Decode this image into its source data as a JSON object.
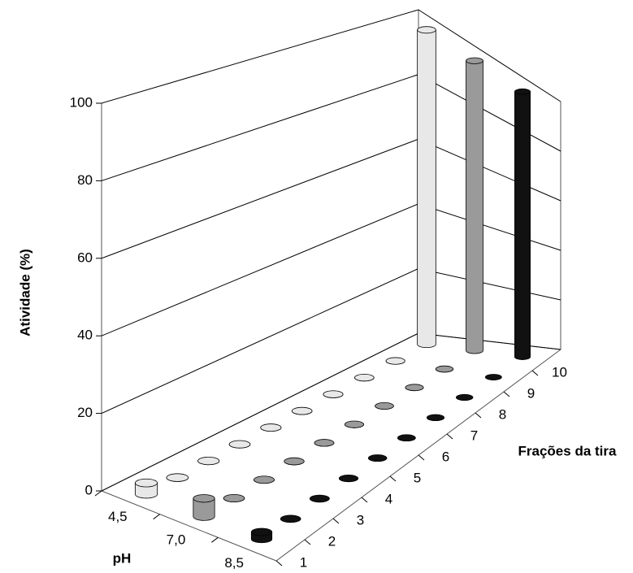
{
  "chart_data": {
    "type": "bar3d",
    "y_label": "Atividade (%)",
    "x_label": "Frações da tira",
    "z_label": "pH",
    "categories": [
      "1",
      "2",
      "3",
      "4",
      "5",
      "6",
      "7",
      "8",
      "9",
      "10"
    ],
    "series": [
      {
        "name": "4,5",
        "color": "#e8e8e8",
        "values": [
          3,
          0,
          0,
          0,
          0,
          0,
          0,
          0,
          0,
          100
        ]
      },
      {
        "name": "7,0",
        "color": "#9a9a9a",
        "values": [
          5,
          0,
          0,
          0,
          0,
          0,
          0,
          0,
          0,
          100
        ]
      },
      {
        "name": "8,5",
        "color": "#111111",
        "values": [
          2,
          0,
          0,
          0,
          0,
          0,
          0,
          0,
          0,
          100
        ]
      }
    ],
    "ylim": [
      0,
      100
    ],
    "yticks": [
      0,
      20,
      40,
      60,
      80,
      100
    ],
    "grid": true
  }
}
